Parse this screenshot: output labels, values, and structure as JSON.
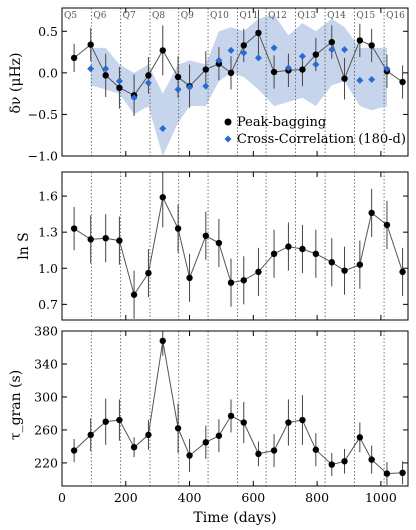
{
  "chart_data": {
    "type": "line",
    "x_axis": {
      "label": "Time (days)",
      "xlim": [
        0,
        1085
      ],
      "ticks": [
        0,
        200,
        400,
        600,
        800,
        1000
      ],
      "tick_labels": [
        "0",
        "200",
        "400",
        "600",
        "800",
        "1000"
      ]
    },
    "quarters": {
      "labels": [
        "Q5",
        "Q6",
        "Q7",
        "Q8",
        "Q9",
        "Q10",
        "Q11",
        "Q12",
        "Q13",
        "Q14",
        "Q15",
        "Q16"
      ],
      "boundaries": [
        92,
        184,
        276,
        366,
        458,
        550,
        640,
        732,
        825,
        917,
        1010
      ]
    },
    "time_days": [
      38,
      90,
      137,
      180,
      226,
      271,
      316,
      364,
      400,
      451,
      492,
      530,
      570,
      616,
      665,
      710,
      754,
      796,
      846,
      886,
      934,
      971,
      1019,
      1068
    ],
    "panels": [
      {
        "id": "frequency-shift",
        "ylabel": "δν (μHz)",
        "ylim": [
          -1.0,
          0.78
        ],
        "yticks": [
          -1.0,
          -0.5,
          0.0,
          0.5
        ],
        "ytick_labels": [
          "−1.0",
          "−0.5",
          "0.0",
          "0.5"
        ],
        "series": [
          {
            "name": "Peak-bagging",
            "style": "black-dots-line",
            "y": [
              0.18,
              0.34,
              -0.03,
              -0.18,
              -0.27,
              -0.03,
              0.27,
              -0.05,
              -0.16,
              0.04,
              0.11,
              0.0,
              0.33,
              0.48,
              0.01,
              0.03,
              0.04,
              0.22,
              0.37,
              -0.07,
              0.39,
              0.33,
              0.02,
              -0.11
            ],
            "err": [
              0.17,
              0.2,
              0.26,
              0.25,
              0.25,
              0.22,
              0.3,
              0.25,
              0.26,
              0.22,
              0.2,
              0.2,
              0.2,
              0.28,
              0.2,
              0.2,
              0.2,
              0.2,
              0.2,
              0.25,
              0.2,
              0.2,
              0.2,
              0.2
            ]
          },
          {
            "name": "Cross-Correlation (180-d)",
            "style": "blue-diamonds-with-band",
            "x": [
              90,
              137,
              180,
              226,
              271,
              316,
              364,
              400,
              451,
              492,
              530,
              570,
              616,
              665,
              710,
              754,
              796,
              846,
              886,
              934,
              971,
              1019
            ],
            "y": [
              0.05,
              0.05,
              -0.1,
              -0.3,
              -0.12,
              -0.67,
              -0.2,
              -0.17,
              -0.16,
              0.15,
              0.27,
              0.24,
              0.18,
              0.3,
              0.06,
              0.2,
              0.1,
              0.28,
              0.28,
              -0.09,
              -0.08,
              0.05
            ],
            "band_lower": [
              -0.15,
              -0.2,
              -0.25,
              -0.5,
              -0.4,
              -1.0,
              -0.6,
              -0.4,
              -0.4,
              -0.1,
              0.0,
              -0.05,
              -0.2,
              -0.4,
              -0.35,
              -0.3,
              -0.4,
              -0.15,
              -0.1,
              -0.4,
              -0.45,
              -0.4
            ],
            "band_upper": [
              0.3,
              0.3,
              0.1,
              0.0,
              0.1,
              -0.25,
              0.1,
              0.15,
              0.1,
              0.5,
              0.55,
              0.5,
              0.65,
              0.7,
              0.45,
              0.6,
              0.5,
              0.65,
              0.55,
              0.3,
              0.3,
              0.3
            ]
          }
        ],
        "legend": {
          "position": "lower-right",
          "entries": [
            "Peak-bagging",
            "Cross-Correlation (180-d)"
          ]
        }
      },
      {
        "id": "log-s",
        "ylabel": "ln S",
        "ylim": [
          0.57,
          1.8
        ],
        "yticks": [
          0.7,
          1.0,
          1.3,
          1.6
        ],
        "ytick_labels": [
          "0.7",
          "1.0",
          "1.3",
          "1.6"
        ],
        "series": [
          {
            "name": "",
            "style": "black-dots-line",
            "y": [
              1.33,
              1.24,
              1.25,
              1.23,
              0.78,
              0.96,
              1.59,
              1.33,
              0.92,
              1.27,
              1.21,
              0.88,
              0.9,
              0.97,
              1.12,
              1.18,
              1.16,
              1.12,
              1.05,
              0.98,
              1.03,
              1.46,
              1.36,
              0.97
            ],
            "err": [
              0.18,
              0.2,
              0.2,
              0.2,
              0.2,
              0.2,
              0.25,
              0.2,
              0.2,
              0.2,
              0.2,
              0.2,
              0.2,
              0.2,
              0.2,
              0.2,
              0.2,
              0.2,
              0.2,
              0.2,
              0.2,
              0.2,
              0.2,
              0.2
            ]
          }
        ]
      },
      {
        "id": "tau-gran",
        "ylabel": "τ_gran (s)",
        "ylim": [
          192,
          380
        ],
        "yticks": [
          220,
          260,
          300,
          340,
          380
        ],
        "ytick_labels": [
          "220",
          "260",
          "300",
          "340",
          "380"
        ],
        "series": [
          {
            "name": "",
            "style": "black-dots-line",
            "y": [
              235,
              254,
              270,
              272,
              239,
              254,
              368,
              262,
              229,
              245,
              253,
              277,
              269,
              231,
              235,
              269,
              272,
              236,
              218,
              222,
              251,
              224,
              207,
              208
            ],
            "err": [
              14,
              20,
              28,
              25,
              12,
              18,
              18,
              30,
              20,
              20,
              20,
              20,
              25,
              15,
              20,
              28,
              30,
              20,
              14,
              15,
              18,
              17,
              14,
              14
            ]
          }
        ]
      }
    ]
  }
}
